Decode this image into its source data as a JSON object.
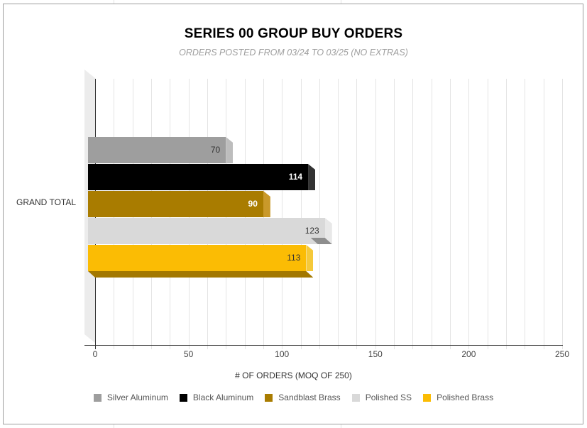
{
  "chart_data": {
    "type": "bar",
    "orientation": "horizontal",
    "style": "3d",
    "title": "SERIES 00 GROUP BUY ORDERS",
    "subtitle": "ORDERS POSTED FROM 03/24 TO 03/25 (NO EXTRAS)",
    "xlabel": "# OF ORDERS (MOQ OF 250)",
    "ylabel": "",
    "categories": [
      "GRAND TOTAL"
    ],
    "xlim": [
      0,
      250
    ],
    "x_ticks": [
      "0",
      "50",
      "100",
      "150",
      "200",
      "250"
    ],
    "grid": true,
    "legend_position": "bottom",
    "series": [
      {
        "name": "Silver Aluminum",
        "values": [
          70
        ],
        "color": "#9e9e9e",
        "label_color": "#333333"
      },
      {
        "name": "Black Aluminum",
        "values": [
          114
        ],
        "color": "#000000",
        "label_color": "#ffffff"
      },
      {
        "name": "Sandblast Brass",
        "values": [
          90
        ],
        "color": "#a97c00",
        "label_color": "#ffffff"
      },
      {
        "name": "Polished SS",
        "values": [
          123
        ],
        "color": "#d9d9d9",
        "label_color": "#333333"
      },
      {
        "name": "Polished Brass",
        "values": [
          113
        ],
        "color": "#fbbc04",
        "label_color": "#333333"
      }
    ]
  },
  "labels": {
    "category": "GRAND TOTAL",
    "bar_values": [
      "70",
      "114",
      "90",
      "123",
      "113"
    ],
    "legend": [
      "Silver Aluminum",
      "Black Aluminum",
      "Sandblast Brass",
      "Polished SS",
      "Polished Brass"
    ]
  }
}
